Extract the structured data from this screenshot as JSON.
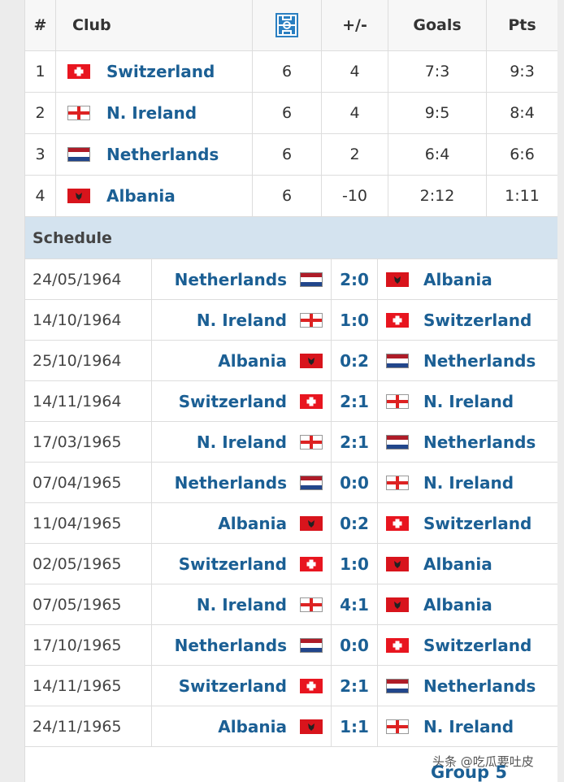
{
  "standings": {
    "headers": {
      "rank": "#",
      "club": "Club",
      "diff": "+/-",
      "goals": "Goals",
      "pts": "Pts"
    },
    "rows": [
      {
        "rank": 1,
        "club": "Switzerland",
        "played": 6,
        "diff": 4,
        "goals": "7:3",
        "pts": "9:3"
      },
      {
        "rank": 2,
        "club": "N. Ireland",
        "played": 6,
        "diff": 4,
        "goals": "9:5",
        "pts": "8:4"
      },
      {
        "rank": 3,
        "club": "Netherlands",
        "played": 6,
        "diff": 2,
        "goals": "6:4",
        "pts": "6:6"
      },
      {
        "rank": 4,
        "club": "Albania",
        "played": 6,
        "diff": -10,
        "goals": "2:12",
        "pts": "1:11"
      }
    ]
  },
  "schedule": {
    "title": "Schedule",
    "matches": [
      {
        "date": "24/05/1964",
        "home": "Netherlands",
        "score": "2:0",
        "away": "Albania"
      },
      {
        "date": "14/10/1964",
        "home": "N. Ireland",
        "score": "1:0",
        "away": "Switzerland"
      },
      {
        "date": "25/10/1964",
        "home": "Albania",
        "score": "0:2",
        "away": "Netherlands"
      },
      {
        "date": "14/11/1964",
        "home": "Switzerland",
        "score": "2:1",
        "away": "N. Ireland"
      },
      {
        "date": "17/03/1965",
        "home": "N. Ireland",
        "score": "2:1",
        "away": "Netherlands"
      },
      {
        "date": "07/04/1965",
        "home": "Netherlands",
        "score": "0:0",
        "away": "N. Ireland"
      },
      {
        "date": "11/04/1965",
        "home": "Albania",
        "score": "0:2",
        "away": "Switzerland"
      },
      {
        "date": "02/05/1965",
        "home": "Switzerland",
        "score": "1:0",
        "away": "Albania"
      },
      {
        "date": "07/05/1965",
        "home": "N. Ireland",
        "score": "4:1",
        "away": "Albania"
      },
      {
        "date": "17/10/1965",
        "home": "Netherlands",
        "score": "0:0",
        "away": "Switzerland"
      },
      {
        "date": "14/11/1965",
        "home": "Switzerland",
        "score": "2:1",
        "away": "Netherlands"
      },
      {
        "date": "24/11/1965",
        "home": "Albania",
        "score": "1:1",
        "away": "N. Ireland"
      }
    ]
  },
  "footer": "Group 5",
  "watermark": "头条 @吃瓜要吐皮"
}
